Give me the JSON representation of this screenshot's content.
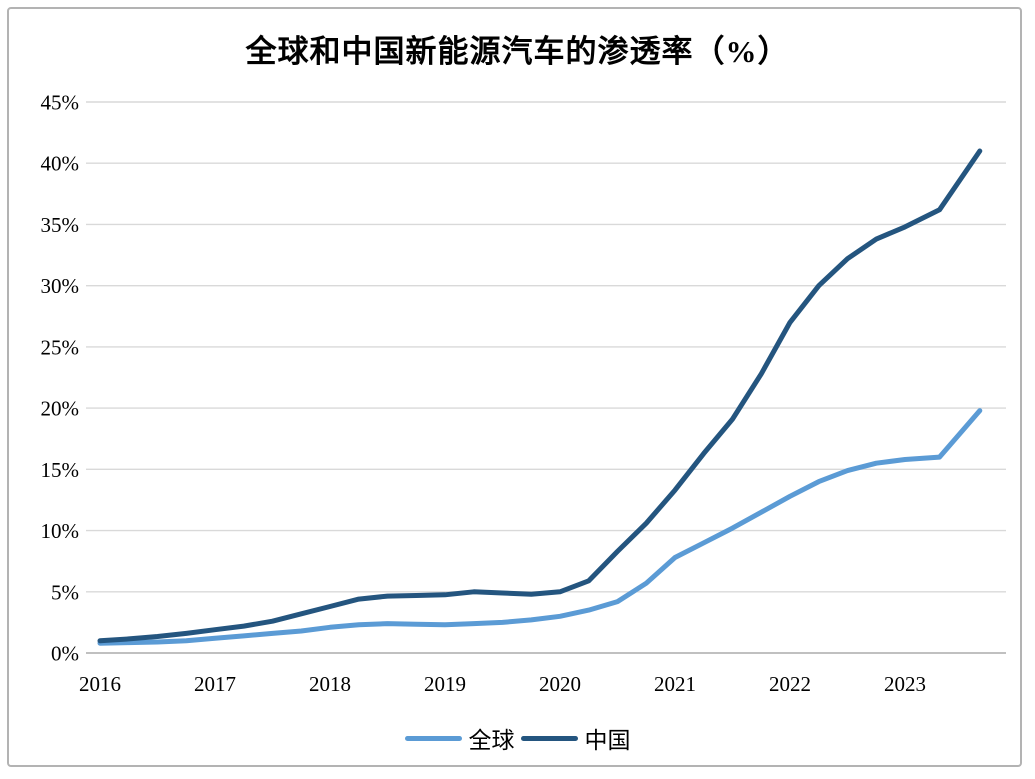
{
  "window": {
    "background": "#ffffff",
    "frame_border_color": "#b3b3b3"
  },
  "chart": {
    "title": "全球和中国新能源汽车的渗透率（%）",
    "legend": [
      {
        "id": "global",
        "label": "全球",
        "color": "#5B9BD5"
      },
      {
        "id": "china",
        "label": "中国",
        "color": "#24557F"
      }
    ]
  },
  "chart_data": {
    "type": "line",
    "title": "全球和中国新能源汽车的渗透率（%）",
    "xlabel": "",
    "ylabel": "",
    "x": [
      2016.0,
      2016.25,
      2016.5,
      2016.75,
      2017.0,
      2017.25,
      2017.5,
      2017.75,
      2018.0,
      2018.25,
      2018.5,
      2018.75,
      2019.0,
      2019.25,
      2019.5,
      2019.75,
      2020.0,
      2020.25,
      2020.5,
      2020.75,
      2021.0,
      2021.25,
      2021.5,
      2021.75,
      2022.0,
      2022.25,
      2022.5,
      2022.75,
      2023.0,
      2023.3,
      2023.65
    ],
    "series": [
      {
        "id": "global",
        "name": "全球",
        "color": "#5B9BD5",
        "stroke_width": 5,
        "values": [
          0.8,
          0.85,
          0.9,
          1.0,
          1.2,
          1.4,
          1.6,
          1.8,
          2.1,
          2.3,
          2.4,
          2.35,
          2.3,
          2.4,
          2.5,
          2.7,
          3.0,
          3.5,
          4.2,
          5.7,
          7.8,
          9.0,
          10.2,
          11.5,
          12.8,
          14.0,
          14.9,
          15.5,
          15.8,
          16.0,
          19.8
        ]
      },
      {
        "id": "china",
        "name": "中国",
        "color": "#24557F",
        "stroke_width": 5,
        "values": [
          1.0,
          1.15,
          1.35,
          1.6,
          1.9,
          2.2,
          2.6,
          3.2,
          3.8,
          4.4,
          4.65,
          4.7,
          4.75,
          5.0,
          4.9,
          4.8,
          5.0,
          5.9,
          8.3,
          10.6,
          13.3,
          16.3,
          19.1,
          22.8,
          27.0,
          30.0,
          32.2,
          33.8,
          34.8,
          36.2,
          41.0
        ]
      }
    ],
    "xlim": [
      2016,
      2023.75
    ],
    "ylim": [
      0,
      45
    ],
    "x_tick_labels": [
      "2016",
      "2017",
      "2018",
      "2019",
      "2020",
      "2021",
      "2022",
      "2023"
    ],
    "x_tick_values": [
      2016,
      2017,
      2018,
      2019,
      2020,
      2021,
      2022,
      2023
    ],
    "y_tick_labels": [
      "0%",
      "5%",
      "10%",
      "15%",
      "20%",
      "25%",
      "30%",
      "35%",
      "40%",
      "45%"
    ],
    "y_tick_values": [
      0,
      5,
      10,
      15,
      20,
      25,
      30,
      35,
      40,
      45
    ],
    "grid": "horizontal",
    "gridline_color": "#D9D9D9",
    "axis_line_color": "#ABABAB",
    "legend_position": "bottom"
  }
}
